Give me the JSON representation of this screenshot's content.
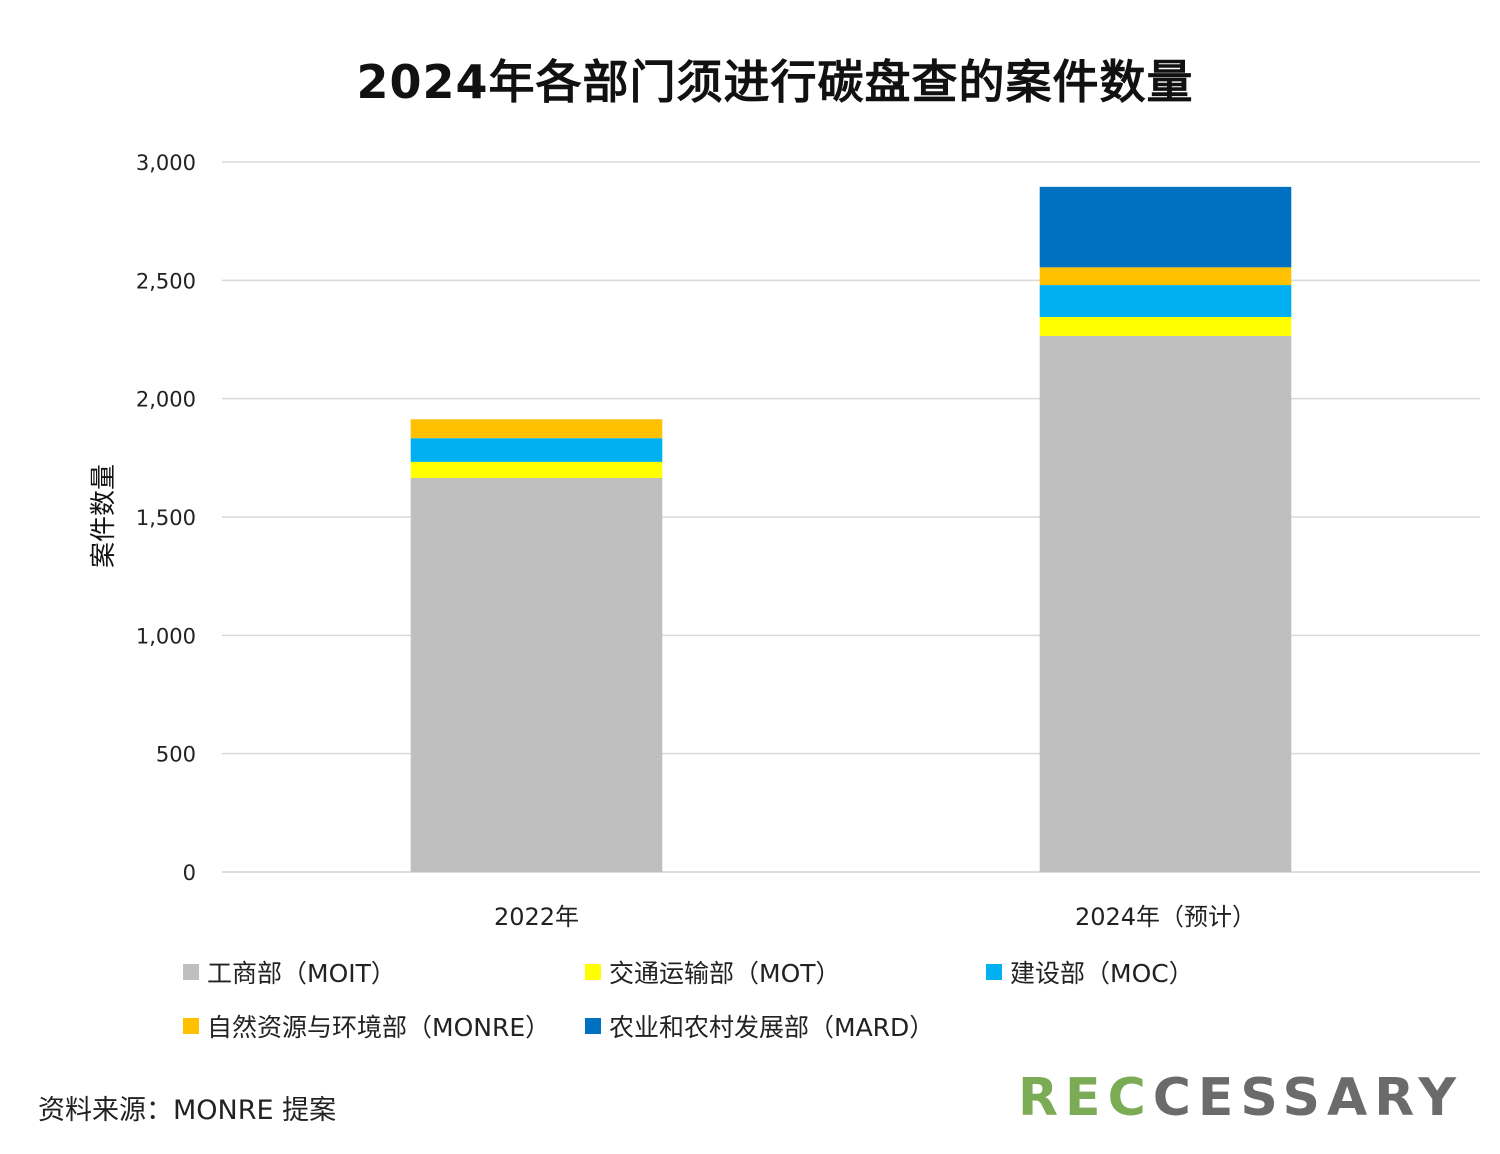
{
  "chart_data": {
    "type": "bar",
    "stacked": true,
    "title": "2024年各部门须进行碳盘查的案件数量",
    "ylabel": "案件数量",
    "xlabel": "",
    "ylim": [
      0,
      3000
    ],
    "yticks": [
      "0",
      "500",
      "1,000",
      "1,500",
      "2,000",
      "2,500",
      "3,000"
    ],
    "ytick_values": [
      0,
      500,
      1000,
      1500,
      2000,
      2500,
      3000
    ],
    "categories": [
      "2022年",
      "2024年（预计）"
    ],
    "grid": true,
    "legend_position": "bottom",
    "series": [
      {
        "name": "工商部（MOIT）",
        "color": "#bfbfbf",
        "values": [
          1665,
          2265
        ]
      },
      {
        "name": "交通运输部（MOT）",
        "color": "#ffff00",
        "values": [
          68,
          80
        ]
      },
      {
        "name": "建设部（MOC）",
        "color": "#00b0f0",
        "values": [
          100,
          135
        ]
      },
      {
        "name": "自然资源与环境部（MONRE）",
        "color": "#ffc000",
        "values": [
          80,
          75
        ]
      },
      {
        "name": "农业和农村发展部（MARD）",
        "color": "#0070c0",
        "values": [
          0,
          340
        ]
      }
    ]
  },
  "source": "资料来源：MONRE 提案",
  "logo": {
    "part1": "REC",
    "part2": "CESSARY"
  }
}
